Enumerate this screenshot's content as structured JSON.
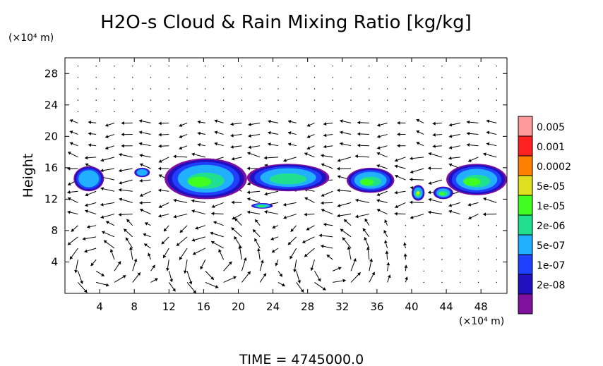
{
  "chart_data": {
    "type": "heatmap",
    "title": "H2O-s Cloud & Rain Mixing Ratio [kg/kg]",
    "xunit": "(×10⁴ m)",
    "yunit": "(×10⁴ m)",
    "ylabel": "Height",
    "xlim": [
      0,
      51
    ],
    "ylim": [
      0,
      30
    ],
    "xticks": [
      "4",
      "8",
      "12",
      "16",
      "20",
      "24",
      "28",
      "32",
      "36",
      "40",
      "44",
      "48"
    ],
    "yticks": [
      "4",
      "8",
      "12",
      "16",
      "20",
      "24",
      "28"
    ],
    "colorbar": {
      "labels": [
        "0.005",
        "0.001",
        "0.0002",
        "5e-05",
        "1e-05",
        "2e-06",
        "5e-07",
        "1e-07",
        "2e-08"
      ],
      "colors": [
        "#ff9999",
        "#ff2020",
        "#ff8000",
        "#e0e020",
        "#40ff20",
        "#20e090",
        "#20b0ff",
        "#2040ff",
        "#2010c0",
        "#8010a0"
      ]
    },
    "time_label": "TIME = 4745000.0",
    "clouds": [
      {
        "x": [
          1.0,
          4.5
        ],
        "y": [
          13.0,
          16.2
        ],
        "level": 7
      },
      {
        "x": [
          8.0,
          9.8
        ],
        "y": [
          14.8,
          16.0
        ],
        "level": 7
      },
      {
        "x": [
          11.5,
          21.0
        ],
        "y": [
          12.0,
          17.2
        ],
        "level": 5
      },
      {
        "x": [
          21.0,
          30.5
        ],
        "y": [
          13.0,
          16.5
        ],
        "level": 6
      },
      {
        "x": [
          21.5,
          24.0
        ],
        "y": [
          10.8,
          11.5
        ],
        "level": 5
      },
      {
        "x": [
          32.5,
          38.0
        ],
        "y": [
          12.8,
          16.0
        ],
        "level": 5
      },
      {
        "x": [
          40.0,
          41.5
        ],
        "y": [
          11.8,
          13.8
        ],
        "level": 4
      },
      {
        "x": [
          42.5,
          44.8
        ],
        "y": [
          12.0,
          13.6
        ],
        "level": 5
      },
      {
        "x": [
          44.0,
          51.0
        ],
        "y": [
          12.5,
          16.5
        ],
        "level": 5
      }
    ]
  }
}
